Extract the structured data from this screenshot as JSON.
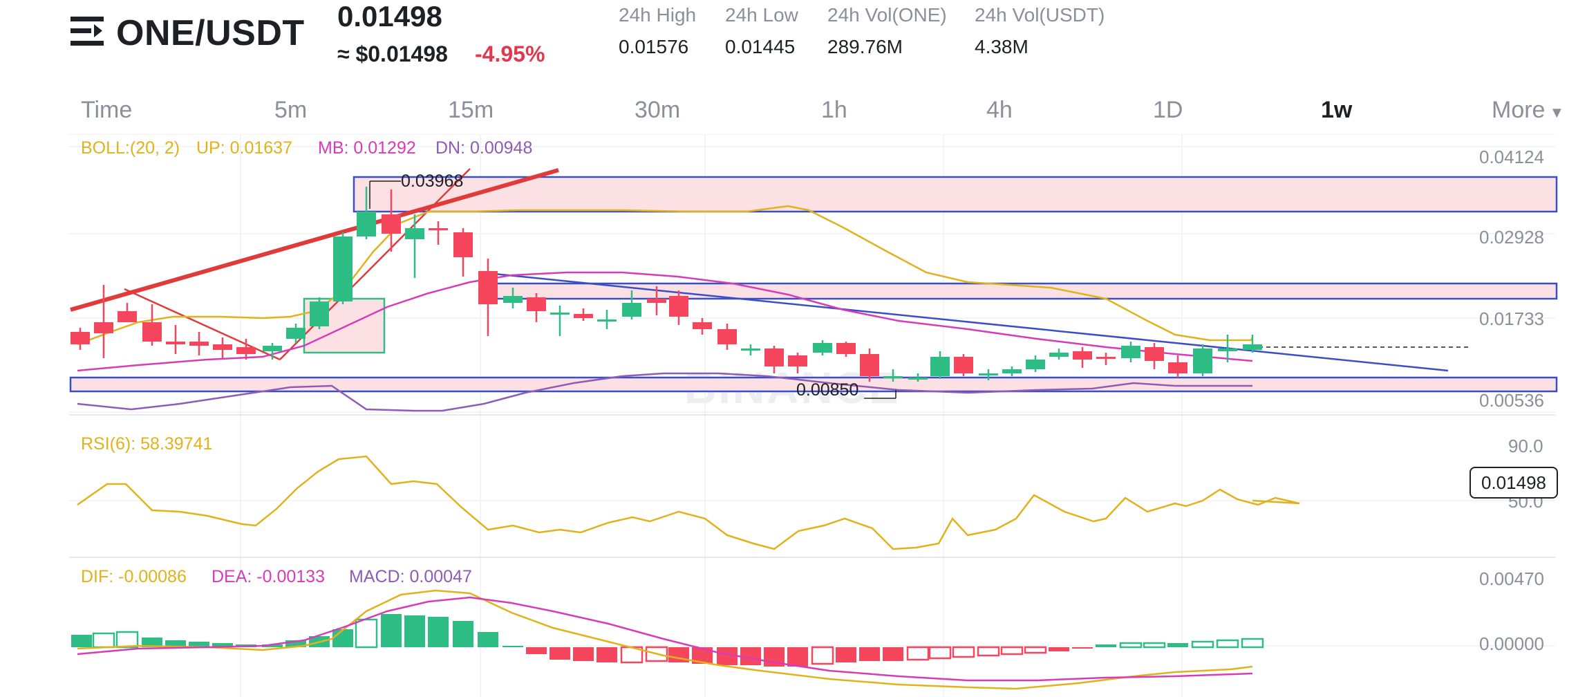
{
  "header": {
    "pair": "ONE/USDT",
    "last_price": "0.01498",
    "usd_price": "≈ $0.01498",
    "change": "-4.95%",
    "stats": [
      {
        "label": "24h High",
        "value": "0.01576"
      },
      {
        "label": "24h Low",
        "value": "0.01445"
      },
      {
        "label": "24h Vol(ONE)",
        "value": "289.76M"
      },
      {
        "label": "24h Vol(USDT)",
        "value": "4.38M"
      }
    ]
  },
  "timebar": {
    "tabs": [
      "Time",
      "5m",
      "15m",
      "30m",
      "1h",
      "4h",
      "1D",
      "1w"
    ],
    "active": "1w",
    "more": "More"
  },
  "indicators": {
    "boll": {
      "name": "BOLL:(20, 2)",
      "up": "UP: 0.01637",
      "mb": "MB: 0.01292",
      "dn": "DN: 0.00948"
    },
    "rsi": "RSI(6): 58.39741",
    "macd": {
      "dif": "DIF: -0.00086",
      "dea": "DEA: -0.00133",
      "macd": "MACD: 0.00047"
    }
  },
  "axis": {
    "price": [
      "0.04124",
      "0.02928",
      "0.01733",
      "0.00536"
    ],
    "rsi": [
      "90.0",
      "50.0"
    ],
    "macd": [
      "0.00470",
      "0.00000"
    ]
  },
  "current_price_tag": "0.01498",
  "annotations": {
    "high": "0.03968",
    "low": "0.00850"
  },
  "watermark": "BINANCE",
  "colors": {
    "up": "#2ebd85",
    "down": "#f6465d",
    "boll_up": "#e0b21b",
    "boll_mb": "#d63cb7",
    "boll_dn": "#8e5bb5",
    "trendline": "#3a4fc7",
    "zone": "#fbe1e3"
  }
}
